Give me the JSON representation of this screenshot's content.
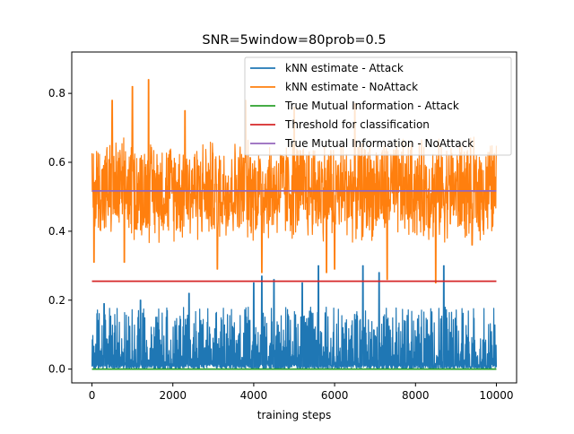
{
  "chart_data": {
    "type": "line",
    "title": "SNR=5window=80prob=0.5",
    "xlabel": "training steps",
    "ylabel": "",
    "xlim": [
      -500,
      10500
    ],
    "ylim": [
      -0.04,
      0.92
    ],
    "xticks": [
      0,
      2000,
      4000,
      6000,
      8000,
      10000
    ],
    "xtick_labels": [
      "0",
      "2000",
      "4000",
      "6000",
      "8000",
      "10000"
    ],
    "yticks": [
      0.0,
      0.2,
      0.4,
      0.6,
      0.8
    ],
    "ytick_labels": [
      "0.0",
      "0.2",
      "0.4",
      "0.6",
      "0.8"
    ],
    "grid": false,
    "legend_position": "upper right",
    "series": [
      {
        "name": "kNN estimate - Attack",
        "color": "#1f77b4",
        "kind": "noisy",
        "x_range": [
          0,
          10000
        ],
        "baseline": 0.0,
        "typical_range": [
          0.0,
          0.18
        ],
        "peaks": [
          [
            300,
            0.19
          ],
          [
            1200,
            0.2
          ],
          [
            2400,
            0.22
          ],
          [
            4000,
            0.25
          ],
          [
            4200,
            0.27
          ],
          [
            4500,
            0.26
          ],
          [
            5200,
            0.25
          ],
          [
            5600,
            0.3
          ],
          [
            6700,
            0.3
          ],
          [
            7100,
            0.28
          ],
          [
            8700,
            0.3
          ]
        ]
      },
      {
        "name": "kNN estimate - NoAttack",
        "color": "#ff7f0e",
        "kind": "noisy",
        "x_range": [
          0,
          10000
        ],
        "typical_range": [
          0.36,
          0.68
        ],
        "peaks": [
          [
            500,
            0.78
          ],
          [
            1000,
            0.82
          ],
          [
            1400,
            0.84
          ],
          [
            2300,
            0.75
          ],
          [
            3100,
            0.79
          ],
          [
            3800,
            0.78
          ],
          [
            5000,
            0.76
          ],
          [
            6500,
            0.77
          ]
        ],
        "troughs": [
          [
            50,
            0.31
          ],
          [
            800,
            0.31
          ],
          [
            3100,
            0.29
          ],
          [
            4200,
            0.28
          ],
          [
            5800,
            0.28
          ],
          [
            6000,
            0.29
          ],
          [
            7300,
            0.26
          ],
          [
            8500,
            0.25
          ],
          [
            9400,
            0.36
          ]
        ]
      },
      {
        "name": "True Mutual Information - Attack",
        "color": "#2ca02c",
        "kind": "constant",
        "x_range": [
          0,
          10000
        ],
        "value": 0.0
      },
      {
        "name": "Threshold for classification",
        "color": "#d62728",
        "kind": "constant",
        "x_range": [
          0,
          10000
        ],
        "value": 0.255
      },
      {
        "name": "True Mutual Information - NoAttack",
        "color": "#9467bd",
        "kind": "constant",
        "x_range": [
          0,
          10000
        ],
        "value": 0.517
      }
    ]
  }
}
